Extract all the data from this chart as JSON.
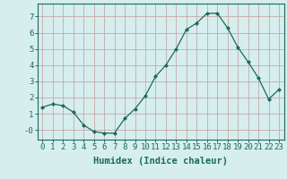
{
  "x": [
    0,
    1,
    2,
    3,
    4,
    5,
    6,
    7,
    8,
    9,
    10,
    11,
    12,
    13,
    14,
    15,
    16,
    17,
    18,
    19,
    20,
    21,
    22,
    23
  ],
  "y": [
    1.4,
    1.6,
    1.5,
    1.1,
    0.3,
    -0.1,
    -0.2,
    -0.2,
    0.7,
    1.3,
    2.1,
    3.3,
    4.0,
    5.0,
    6.2,
    6.6,
    7.2,
    7.2,
    6.3,
    5.1,
    4.2,
    3.2,
    1.9,
    2.5
  ],
  "line_color": "#1a6b5a",
  "marker": "D",
  "marker_size": 2.0,
  "bg_color": "#d6eeee",
  "grid_color_major": "#c8a8a8",
  "grid_color_minor": "#c8d8d8",
  "xlabel": "Humidex (Indice chaleur)",
  "xlim": [
    -0.5,
    23.5
  ],
  "ylim": [
    -0.6,
    7.8
  ],
  "yticks": [
    0,
    1,
    2,
    3,
    4,
    5,
    6,
    7
  ],
  "ytick_labels": [
    "-0",
    "1",
    "2",
    "3",
    "4",
    "5",
    "6",
    "7"
  ],
  "xticks": [
    0,
    1,
    2,
    3,
    4,
    5,
    6,
    7,
    8,
    9,
    10,
    11,
    12,
    13,
    14,
    15,
    16,
    17,
    18,
    19,
    20,
    21,
    22,
    23
  ],
  "axis_color": "#1a6b5a",
  "label_color": "#1a6b5a",
  "tick_color": "#1a6b5a",
  "font_size": 6.5,
  "xlabel_fontsize": 7.5
}
